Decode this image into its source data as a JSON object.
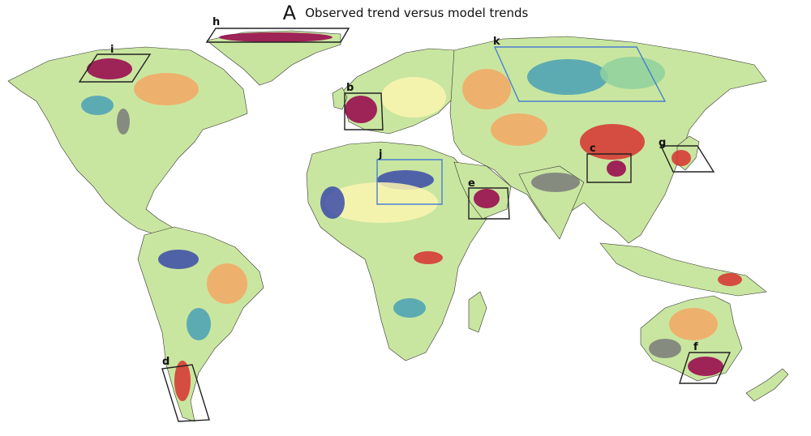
{
  "figure": {
    "panel_letter": "A",
    "title": "Observed trend versus model trends"
  },
  "colors": {
    "ocean": "#ffffff",
    "land_base": "#c9e6a0",
    "neutral_yellow": "#fbf5b0",
    "warm_orange": "#f3a764",
    "warm_red": "#d7302f",
    "dark_red": "#97004a",
    "cool_green": "#8fd19e",
    "cool_teal": "#4aa0b5",
    "cool_blue": "#3b4aa8",
    "no_data_gray": "#7a7a7a",
    "box_black": "#222222",
    "box_blue": "#4a7fd0"
  },
  "regions": [
    {
      "label": "h",
      "box_color": "black"
    },
    {
      "label": "i",
      "box_color": "black"
    },
    {
      "label": "b",
      "box_color": "black"
    },
    {
      "label": "k",
      "box_color": "blue"
    },
    {
      "label": "j",
      "box_color": "blue"
    },
    {
      "label": "c",
      "box_color": "black"
    },
    {
      "label": "g",
      "box_color": "black"
    },
    {
      "label": "e",
      "box_color": "black"
    },
    {
      "label": "d",
      "box_color": "black"
    },
    {
      "label": "f",
      "box_color": "black"
    }
  ]
}
